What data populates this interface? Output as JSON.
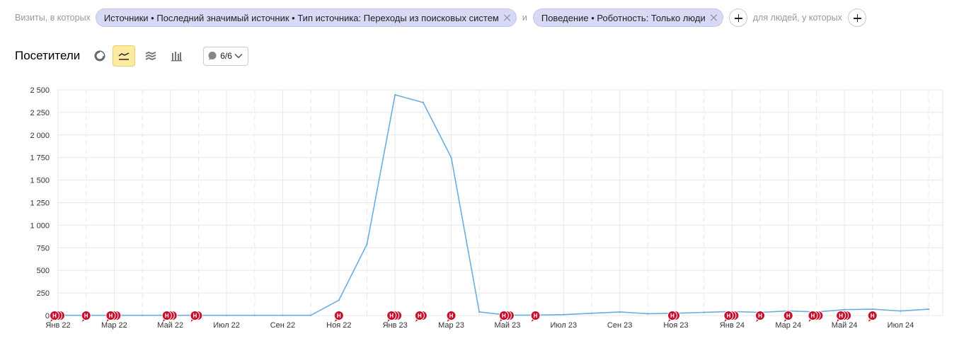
{
  "filters": {
    "visits_label": "Визиты, в которых",
    "chip1": "Источники • Последний значимый источник • Тип источника: Переходы из поисковых систем",
    "and_label": "и",
    "chip2": "Поведение • Роботность: Только люди",
    "people_label": "для людей, у которых"
  },
  "toolbar": {
    "title": "Посетители",
    "chart_types": [
      "pie-chart",
      "line-chart",
      "area-chart",
      "bar-chart"
    ],
    "active_chart_type": "line-chart",
    "annotations_count": "6/6"
  },
  "colors": {
    "line": "#6aaedf",
    "marker": "#c8102e",
    "active_btn": "#ffeba0",
    "chip": "#d8d9f5"
  },
  "chart_data": {
    "type": "line",
    "title": "",
    "xlabel": "",
    "ylabel": "",
    "ylim": [
      0,
      2500
    ],
    "yticks": [
      "0",
      "250",
      "500",
      "750",
      "1 000",
      "1 250",
      "1 500",
      "1 750",
      "2 000",
      "2 250",
      "2 500"
    ],
    "x_labels": [
      "Янв 22",
      "Мар 22",
      "Май 22",
      "Июл 22",
      "Сен 22",
      "Ноя 22",
      "Янв 23",
      "Мар 23",
      "Май 23",
      "Июл 23",
      "Сен 23",
      "Ноя 23",
      "Янв 24",
      "Мар 24",
      "Май 24",
      "Июл 24"
    ],
    "x": [
      "2022-01",
      "2022-02",
      "2022-03",
      "2022-04",
      "2022-05",
      "2022-06",
      "2022-07",
      "2022-08",
      "2022-09",
      "2022-10",
      "2022-11",
      "2022-12",
      "2023-01",
      "2023-02",
      "2023-03",
      "2023-04",
      "2023-05",
      "2023-06",
      "2023-07",
      "2023-08",
      "2023-09",
      "2023-10",
      "2023-11",
      "2023-12",
      "2024-01",
      "2024-02",
      "2024-03",
      "2024-04",
      "2024-05",
      "2024-06",
      "2024-07",
      "2024-08"
    ],
    "series": [
      {
        "values": [
          2,
          2,
          2,
          2,
          2,
          2,
          2,
          2,
          2,
          2,
          170,
          790,
          2445,
          2360,
          1750,
          40,
          5,
          5,
          10,
          25,
          40,
          20,
          25,
          35,
          45,
          35,
          50,
          40,
          65,
          70,
          50,
          70
        ]
      }
    ],
    "annotation_label": "Н",
    "annotations": [
      {
        "at": "2022-01",
        "count": 3
      },
      {
        "at": "2022-02",
        "count": 1
      },
      {
        "at": "2022-03",
        "count": 3
      },
      {
        "at": "2022-05",
        "count": 3
      },
      {
        "at": "2022-06",
        "count": 2
      },
      {
        "at": "2022-11",
        "count": 1
      },
      {
        "at": "2023-01",
        "count": 3
      },
      {
        "at": "2023-02",
        "count": 2
      },
      {
        "at": "2023-03",
        "count": 1
      },
      {
        "at": "2023-05",
        "count": 3
      },
      {
        "at": "2023-06",
        "count": 1
      },
      {
        "at": "2023-11",
        "count": 2
      },
      {
        "at": "2024-01",
        "count": 3
      },
      {
        "at": "2024-02",
        "count": 1
      },
      {
        "at": "2024-03",
        "count": 1
      },
      {
        "at": "2024-04",
        "count": 3
      },
      {
        "at": "2024-05",
        "count": 3
      },
      {
        "at": "2024-06",
        "count": 1
      }
    ]
  }
}
